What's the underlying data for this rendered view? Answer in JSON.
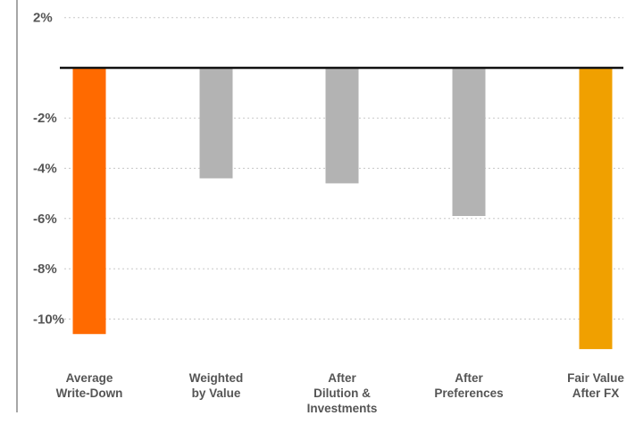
{
  "chart_data": {
    "type": "bar",
    "title": "",
    "xlabel": "",
    "ylabel": "",
    "categories": [
      [
        "Average",
        "Write-Down"
      ],
      [
        "Weighted",
        "by Value"
      ],
      [
        "After",
        "Dilution &",
        "Investments"
      ],
      [
        "After",
        "Preferences"
      ],
      [
        "Fair Value",
        "After FX"
      ]
    ],
    "values": [
      -10.6,
      -4.4,
      -4.6,
      -5.9,
      -11.2
    ],
    "bar_colors": [
      "#FF6A00",
      "#B3B3B3",
      "#B3B3B3",
      "#B3B3B3",
      "#F0A000"
    ],
    "ylim": [
      -11.8,
      2.7
    ],
    "yticks": [
      2,
      -2,
      -4,
      -6,
      -8,
      -10
    ],
    "ytick_labels": [
      "2%",
      "-2%",
      "-4%",
      "-6%",
      "-8%",
      "-10%"
    ],
    "grid": true,
    "grid_style": "dotted",
    "zero_line": true,
    "legend": "none",
    "colors": {
      "grid": "#C8C8C8",
      "zero_line": "#111111",
      "axis": "#888888",
      "text": "#555555"
    }
  }
}
